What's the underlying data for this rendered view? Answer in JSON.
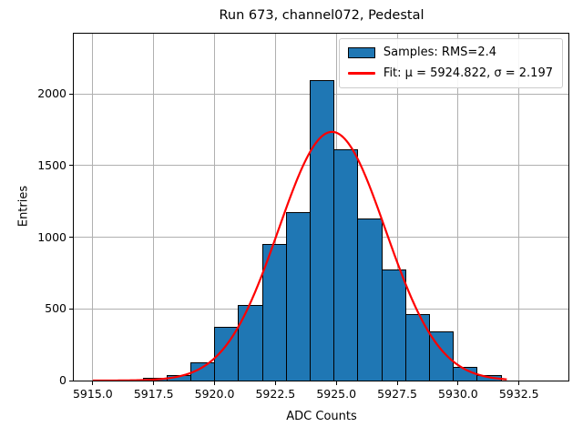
{
  "figure": {
    "title": "Run 673, channel072, Pedestal",
    "xlabel": "ADC Counts",
    "ylabel": "Entries",
    "background": "#ffffff"
  },
  "axes": {
    "xlim": [
      5914.22,
      5934.53
    ],
    "ylim": [
      0,
      2420
    ],
    "xticks": [
      {
        "value": 5915.0,
        "label": "5915.0"
      },
      {
        "value": 5917.5,
        "label": "5917.5"
      },
      {
        "value": 5920.0,
        "label": "5920.0"
      },
      {
        "value": 5922.5,
        "label": "5922.5"
      },
      {
        "value": 5925.0,
        "label": "5925.0"
      },
      {
        "value": 5927.5,
        "label": "5927.5"
      },
      {
        "value": 5930.0,
        "label": "5930.0"
      },
      {
        "value": 5932.5,
        "label": "5932.5"
      }
    ],
    "yticks": [
      {
        "value": 0,
        "label": "0"
      },
      {
        "value": 500,
        "label": "500"
      },
      {
        "value": 1000,
        "label": "1000"
      },
      {
        "value": 1500,
        "label": "1500"
      },
      {
        "value": 2000,
        "label": "2000"
      }
    ],
    "grid_color": "#b0b0b0",
    "spine_color": "#000000"
  },
  "legend": {
    "items": [
      {
        "swatch": "patch",
        "color": "#1f77b4",
        "edge_color": "#000000",
        "label": "Samples: RMS=2.4"
      },
      {
        "swatch": "line",
        "color": "#ff0000",
        "label": "Fit: μ = 5924.822, σ = 2.197"
      }
    ]
  },
  "chart_data": {
    "type": "bar",
    "subtype": "histogram",
    "title": "Run 673, channel072, Pedestal",
    "xlabel": "ADC Counts",
    "ylabel": "Entries",
    "xlim": [
      5914.22,
      5934.53
    ],
    "ylim": [
      0,
      2420
    ],
    "grid": true,
    "legend_position": "upper right",
    "bar_color": "#1f77b4",
    "bar_edge_color": "#000000",
    "bins": {
      "start": 5917.05,
      "width": 0.98,
      "counts": [
        20,
        35,
        130,
        375,
        525,
        950,
        1175,
        2095,
        1615,
        1130,
        775,
        465,
        345,
        95,
        40
      ]
    },
    "fit_curve": {
      "type": "gaussian",
      "mu": 5924.822,
      "sigma": 2.197,
      "peak": 1735,
      "x_start": 5915.0,
      "x_end": 5932.0,
      "color": "#ff0000",
      "line_width": 2.2
    },
    "stats": {
      "rms": 2.4,
      "fit_mu": 5924.822,
      "fit_sigma": 2.197
    }
  }
}
